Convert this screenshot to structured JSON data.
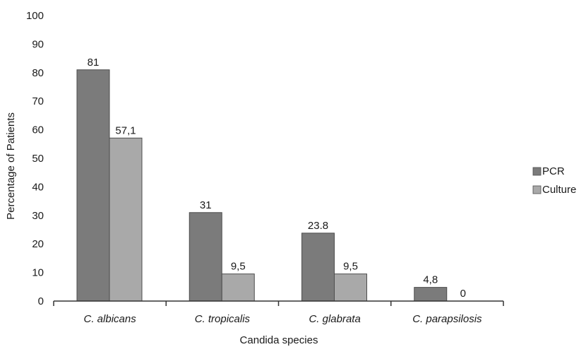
{
  "chart_data": {
    "type": "bar",
    "categories": [
      "C. albicans",
      "C. tropicalis",
      "C. glabrata",
      "C. parapsilosis"
    ],
    "series": [
      {
        "name": "PCR",
        "values": [
          81,
          31,
          23.8,
          4.8
        ],
        "labels": [
          "81",
          "31",
          "23.8",
          "4,8"
        ],
        "color": "#7b7b7b"
      },
      {
        "name": "Culture",
        "values": [
          57.1,
          9.5,
          9.5,
          0
        ],
        "labels": [
          "57,1",
          "9,5",
          "9,5",
          "0"
        ],
        "color": "#a9a9a9"
      }
    ],
    "xlabel": "Candida species",
    "ylabel": "Percentage of Patients",
    "ylim": [
      0,
      100
    ],
    "yticks": [
      "0",
      "10",
      "20",
      "30",
      "40",
      "50",
      "60",
      "70",
      "80",
      "90",
      "100"
    ],
    "legend_position": "right",
    "grid": false
  }
}
